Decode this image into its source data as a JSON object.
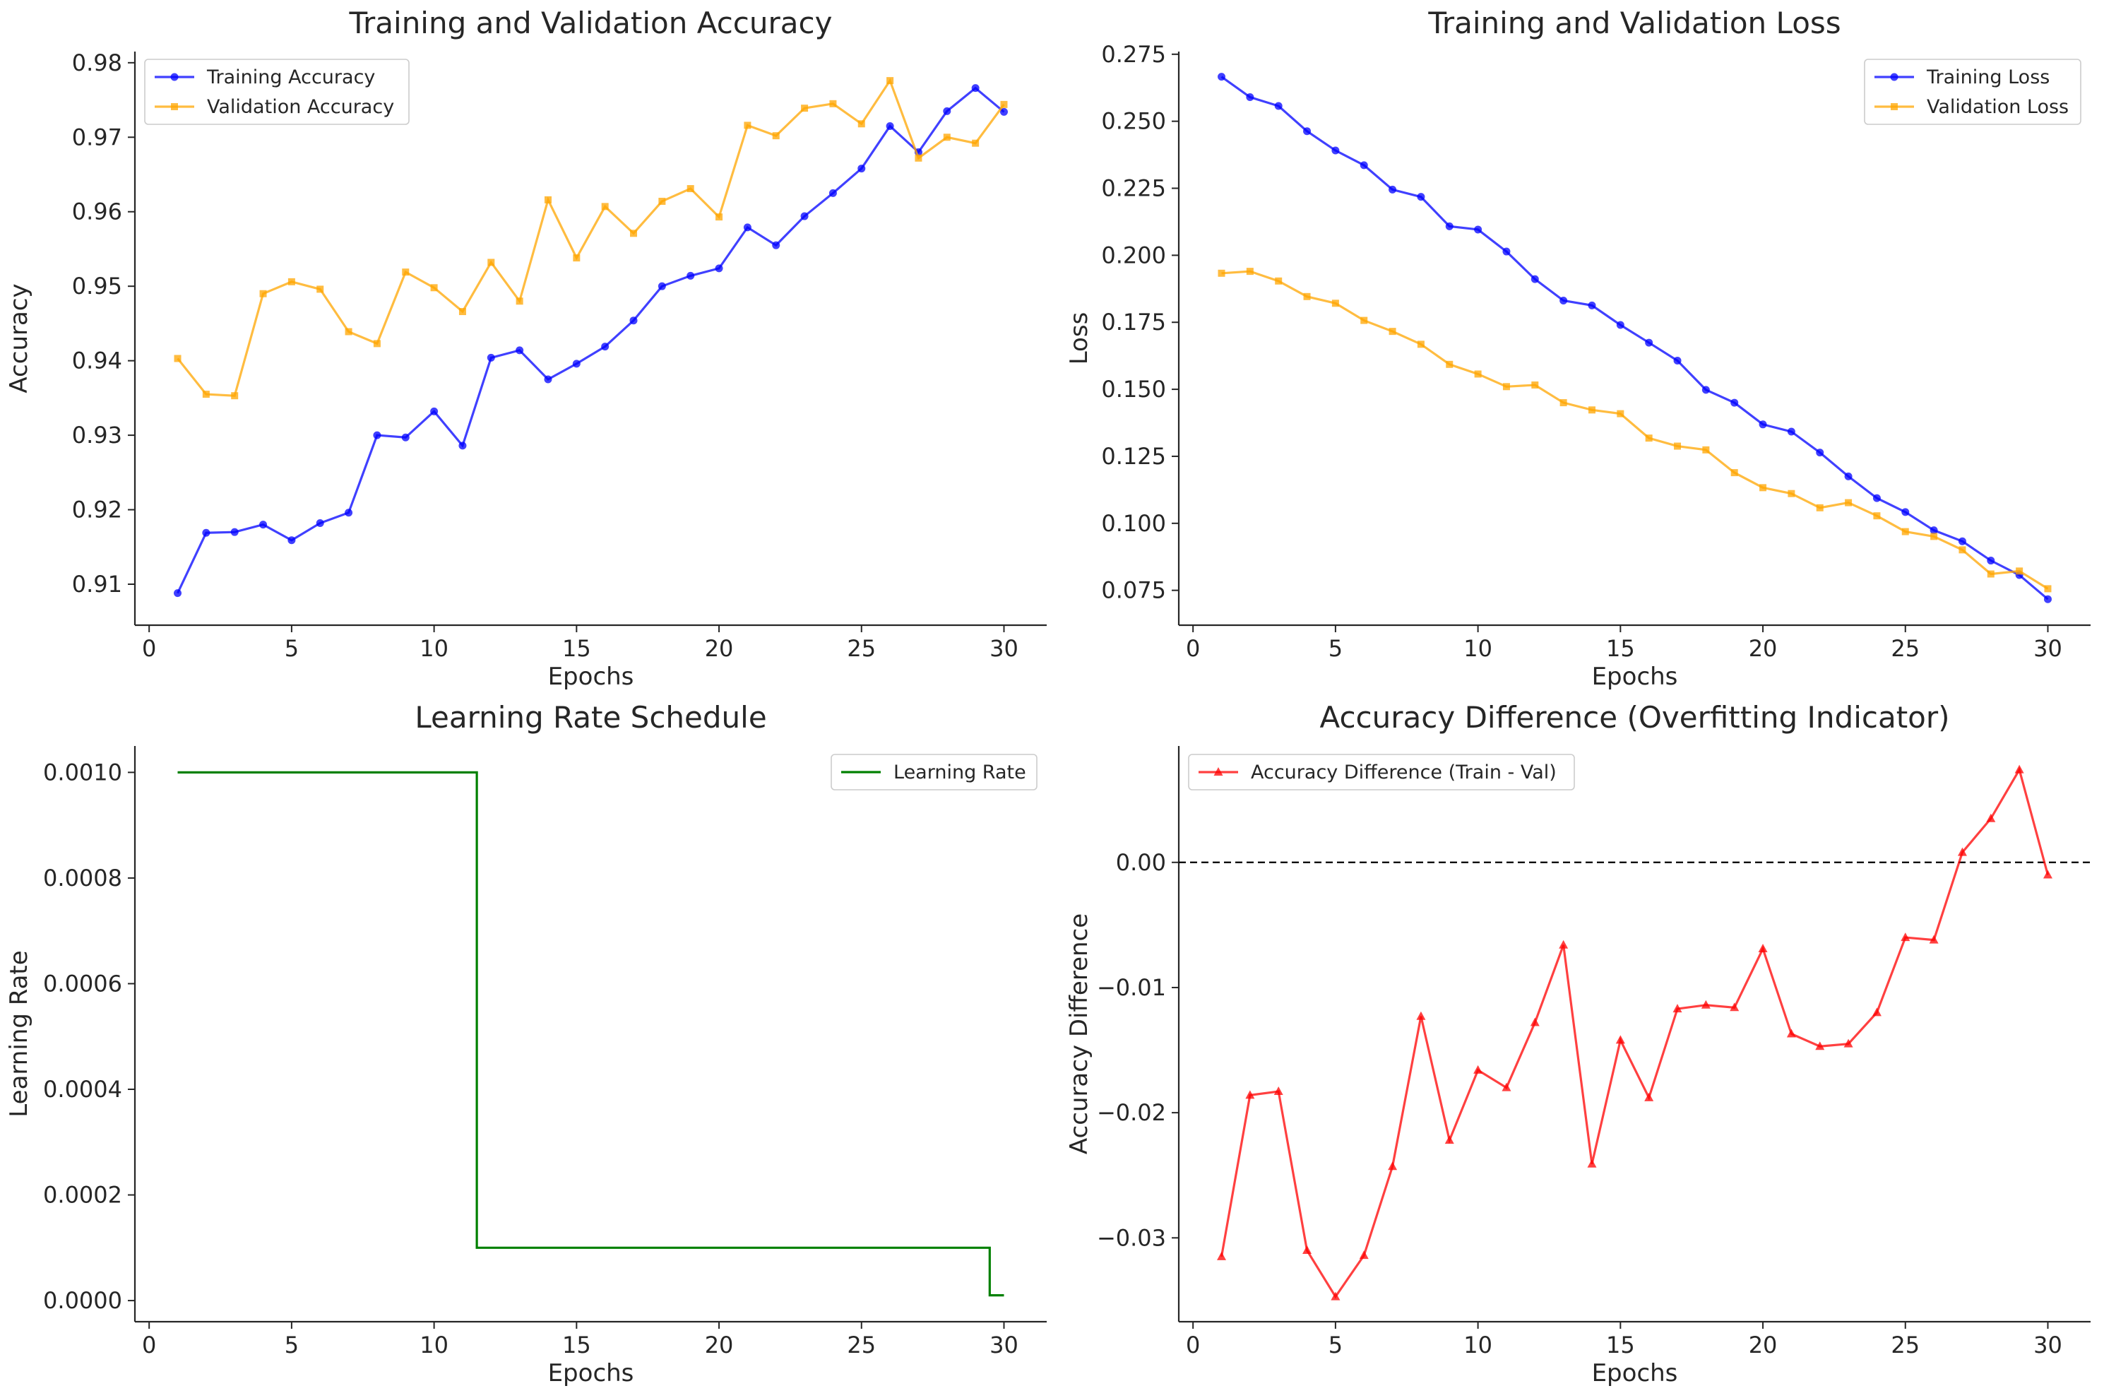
{
  "colors": {
    "training": "#0000ff",
    "validation": "#ffa500",
    "learning_rate": "#008000",
    "difference": "#ff0000",
    "reference_line": "#000000"
  },
  "chart_data": [
    {
      "type": "line",
      "title": "Training and Validation Accuracy",
      "xlabel": "Epochs",
      "ylabel": "Accuracy",
      "xlim": [
        -0.5,
        31.5
      ],
      "ylim": [
        0.9045,
        0.9815
      ],
      "xticks": [
        0,
        5,
        10,
        15,
        20,
        25,
        30
      ],
      "xtick_labels": [
        "0",
        "5",
        "10",
        "15",
        "20",
        "25",
        "30"
      ],
      "yticks": [
        0.91,
        0.92,
        0.93,
        0.94,
        0.95,
        0.96,
        0.97,
        0.98
      ],
      "ytick_labels": [
        "0.91",
        "0.92",
        "0.93",
        "0.94",
        "0.95",
        "0.96",
        "0.97",
        "0.98"
      ],
      "legend": "top-left",
      "x": [
        1,
        2,
        3,
        4,
        5,
        6,
        7,
        8,
        9,
        10,
        11,
        12,
        13,
        14,
        15,
        16,
        17,
        18,
        19,
        20,
        21,
        22,
        23,
        24,
        25,
        26,
        27,
        28,
        29,
        30
      ],
      "series": [
        {
          "name": "Training Accuracy",
          "color_key": "training",
          "marker": "circle",
          "values": [
            0.9088,
            0.9169,
            0.917,
            0.918,
            0.9159,
            0.9182,
            0.9196,
            0.93,
            0.9297,
            0.9332,
            0.9286,
            0.9404,
            0.9414,
            0.9375,
            0.9396,
            0.9419,
            0.9454,
            0.95,
            0.9514,
            0.9524,
            0.9579,
            0.9555,
            0.9594,
            0.9625,
            0.9658,
            0.9715,
            0.968,
            0.9735,
            0.9766,
            0.9734
          ]
        },
        {
          "name": "Validation Accuracy",
          "color_key": "validation",
          "marker": "square",
          "values": [
            0.9403,
            0.9355,
            0.9353,
            0.949,
            0.9506,
            0.9496,
            0.9439,
            0.9423,
            0.9519,
            0.9498,
            0.9466,
            0.9532,
            0.948,
            0.9616,
            0.9538,
            0.9607,
            0.9571,
            0.9614,
            0.9631,
            0.9593,
            0.9716,
            0.9702,
            0.9739,
            0.9745,
            0.9718,
            0.9776,
            0.9672,
            0.97,
            0.9692,
            0.9744
          ]
        }
      ]
    },
    {
      "type": "line",
      "title": "Training and Validation Loss",
      "xlabel": "Epochs",
      "ylabel": "Loss",
      "xlim": [
        -0.5,
        31.5
      ],
      "ylim": [
        0.062,
        0.276
      ],
      "xticks": [
        0,
        5,
        10,
        15,
        20,
        25,
        30
      ],
      "xtick_labels": [
        "0",
        "5",
        "10",
        "15",
        "20",
        "25",
        "30"
      ],
      "yticks": [
        0.075,
        0.1,
        0.125,
        0.15,
        0.175,
        0.2,
        0.225,
        0.25,
        0.275
      ],
      "ytick_labels": [
        "0.075",
        "0.100",
        "0.125",
        "0.150",
        "0.175",
        "0.200",
        "0.225",
        "0.250",
        "0.275"
      ],
      "legend": "top-right",
      "x": [
        1,
        2,
        3,
        4,
        5,
        6,
        7,
        8,
        9,
        10,
        11,
        12,
        13,
        14,
        15,
        16,
        17,
        18,
        19,
        20,
        21,
        22,
        23,
        24,
        25,
        26,
        27,
        28,
        29,
        30
      ],
      "series": [
        {
          "name": "Training Loss",
          "color_key": "training",
          "marker": "circle",
          "values": [
            0.2666,
            0.259,
            0.2557,
            0.2463,
            0.2391,
            0.2336,
            0.2245,
            0.2218,
            0.2108,
            0.2096,
            0.2014,
            0.1911,
            0.1831,
            0.1813,
            0.174,
            0.1674,
            0.1607,
            0.1498,
            0.145,
            0.1369,
            0.1342,
            0.1264,
            0.1175,
            0.1094,
            0.1042,
            0.0974,
            0.0933,
            0.0861,
            0.0807,
            0.0717
          ]
        },
        {
          "name": "Validation Loss",
          "color_key": "validation",
          "marker": "square",
          "values": [
            0.1933,
            0.194,
            0.1904,
            0.1846,
            0.1821,
            0.1757,
            0.1716,
            0.1668,
            0.1593,
            0.1557,
            0.151,
            0.1516,
            0.145,
            0.1423,
            0.1409,
            0.1318,
            0.1288,
            0.1274,
            0.1189,
            0.1133,
            0.1111,
            0.1058,
            0.1077,
            0.1028,
            0.0969,
            0.0951,
            0.0901,
            0.0811,
            0.0822,
            0.0756
          ]
        }
      ]
    },
    {
      "type": "line",
      "title": "Learning Rate Schedule",
      "xlabel": "Epochs",
      "ylabel": "Learning Rate",
      "xlim": [
        -0.5,
        31.5
      ],
      "ylim": [
        -4e-05,
        0.00105
      ],
      "xticks": [
        0,
        5,
        10,
        15,
        20,
        25,
        30
      ],
      "xtick_labels": [
        "0",
        "5",
        "10",
        "15",
        "20",
        "25",
        "30"
      ],
      "yticks": [
        0,
        0.0002,
        0.0004,
        0.0006,
        0.0008,
        0.001
      ],
      "ytick_labels": [
        "0.0000",
        "0.0002",
        "0.0004",
        "0.0006",
        "0.0008",
        "0.0010"
      ],
      "legend": "top-right",
      "step": "mid",
      "x": [
        1,
        2,
        3,
        4,
        5,
        6,
        7,
        8,
        9,
        10,
        11,
        12,
        13,
        14,
        15,
        16,
        17,
        18,
        19,
        20,
        21,
        22,
        23,
        24,
        25,
        26,
        27,
        28,
        29,
        30
      ],
      "series": [
        {
          "name": "Learning Rate",
          "color_key": "learning_rate",
          "marker": "none",
          "values": [
            0.001,
            0.001,
            0.001,
            0.001,
            0.001,
            0.001,
            0.001,
            0.001,
            0.001,
            0.001,
            0.001,
            0.0001,
            0.0001,
            0.0001,
            0.0001,
            0.0001,
            0.0001,
            0.0001,
            0.0001,
            0.0001,
            0.0001,
            0.0001,
            0.0001,
            0.0001,
            0.0001,
            0.0001,
            0.0001,
            0.0001,
            0.0001,
            1e-05
          ]
        }
      ]
    },
    {
      "type": "line",
      "title": "Accuracy Difference (Overfitting Indicator)",
      "xlabel": "Epochs",
      "ylabel": "Accuracy Difference",
      "xlim": [
        -0.5,
        31.5
      ],
      "ylim": [
        -0.0367,
        0.0093
      ],
      "xticks": [
        0,
        5,
        10,
        15,
        20,
        25,
        30
      ],
      "xtick_labels": [
        "0",
        "5",
        "10",
        "15",
        "20",
        "25",
        "30"
      ],
      "yticks": [
        -0.03,
        -0.02,
        -0.01,
        0
      ],
      "ytick_labels": [
        "−0.03",
        "−0.02",
        "−0.01",
        "0.00"
      ],
      "legend": "top-left",
      "reference_line": 0,
      "x": [
        1,
        2,
        3,
        4,
        5,
        6,
        7,
        8,
        9,
        10,
        11,
        12,
        13,
        14,
        15,
        16,
        17,
        18,
        19,
        20,
        21,
        22,
        23,
        24,
        25,
        26,
        27,
        28,
        29,
        30
      ],
      "series": [
        {
          "name": "Accuracy Difference (Train - Val)",
          "color_key": "difference",
          "marker": "triangle",
          "values": [
            -0.0315,
            -0.0186,
            -0.0183,
            -0.031,
            -0.0347,
            -0.0314,
            -0.0243,
            -0.0123,
            -0.0222,
            -0.0166,
            -0.018,
            -0.0128,
            -0.0066,
            -0.0241,
            -0.0142,
            -0.0188,
            -0.0117,
            -0.0114,
            -0.0116,
            -0.0069,
            -0.0137,
            -0.0147,
            -0.0145,
            -0.012,
            -0.006,
            -0.0062,
            0.0008,
            0.0035,
            0.0074,
            -0.001
          ]
        }
      ]
    }
  ]
}
